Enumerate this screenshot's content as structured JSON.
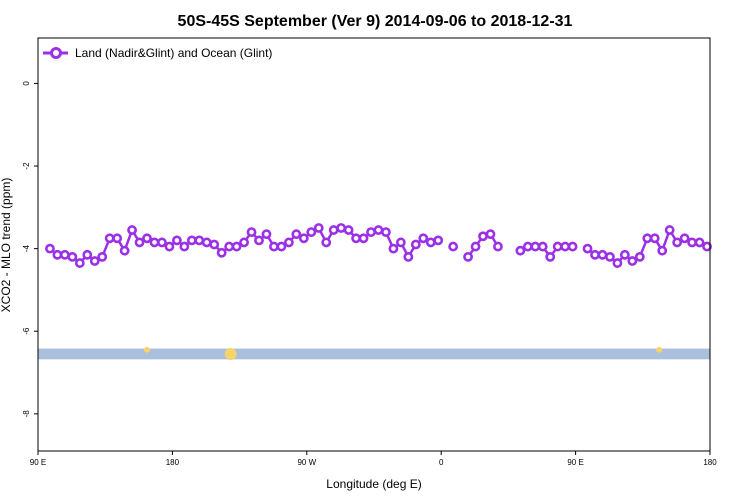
{
  "chart_data": {
    "type": "line",
    "title": "50S-45S September (Ver 9)   2014-09-06 to 2018-12-31",
    "xlabel": "Longitude (deg E)",
    "ylabel": "XCO2 - MLO trend (ppm)",
    "xlim": [
      90,
      450
    ],
    "ylim": [
      -8.9,
      1.1
    ],
    "x_tick_values": [
      90,
      180,
      270,
      360,
      450,
      540
    ],
    "x_tick_labels": [
      "90 E",
      "180",
      "90 W",
      "0",
      "90 E",
      "180"
    ],
    "y_tick_values": [
      0,
      -2,
      -4,
      -6,
      -8
    ],
    "y_tick_labels": [
      "0",
      "-2",
      "-4",
      "-6",
      "-8"
    ],
    "legend_position": "top-left",
    "colors": {
      "series": "#9b30e6",
      "land_band": "#a9bfdc",
      "land_patch": "#f7d36b"
    },
    "series": [
      {
        "name": "Land (Nadir&Glint) and Ocean (Glint)",
        "points": [
          [
            98,
            -4.0
          ],
          [
            103,
            -4.15
          ],
          [
            108,
            -4.15
          ],
          [
            113,
            -4.2
          ],
          [
            118,
            -4.35
          ],
          [
            123,
            -4.15
          ],
          [
            128,
            -4.3
          ],
          [
            133,
            -4.2
          ],
          [
            138,
            -3.75
          ],
          [
            143,
            -3.75
          ],
          [
            148,
            -4.05
          ],
          [
            153,
            -3.55
          ],
          [
            158,
            -3.85
          ],
          [
            163,
            -3.75
          ],
          [
            168,
            -3.85
          ],
          [
            173,
            -3.85
          ],
          [
            178,
            -3.95
          ],
          [
            183,
            -3.8
          ],
          [
            188,
            -3.95
          ],
          [
            193,
            -3.8
          ],
          [
            198,
            -3.8
          ],
          [
            203,
            -3.85
          ],
          [
            208,
            -3.9
          ],
          [
            213,
            -4.1
          ],
          [
            218,
            -3.95
          ],
          [
            223,
            -3.95
          ],
          [
            228,
            -3.85
          ],
          [
            233,
            -3.6
          ],
          [
            238,
            -3.8
          ],
          [
            243,
            -3.65
          ],
          [
            248,
            -3.95
          ],
          [
            253,
            -3.95
          ],
          [
            258,
            -3.85
          ],
          [
            263,
            -3.65
          ],
          [
            268,
            -3.75
          ],
          [
            273,
            -3.6
          ],
          [
            278,
            -3.5
          ],
          [
            283,
            -3.85
          ],
          [
            288,
            -3.55
          ],
          [
            293,
            -3.5
          ],
          [
            298,
            -3.55
          ],
          [
            303,
            -3.75
          ],
          [
            308,
            -3.75
          ],
          [
            313,
            -3.6
          ],
          [
            318,
            -3.55
          ],
          [
            323,
            -3.6
          ],
          [
            328,
            -4.0
          ],
          [
            333,
            -3.85
          ],
          [
            338,
            -4.2
          ],
          [
            343,
            -3.9
          ],
          [
            348,
            -3.75
          ],
          [
            353,
            -3.85
          ],
          [
            358,
            -3.8
          ],
          null,
          [
            368,
            -3.95
          ],
          null,
          [
            378,
            -4.2
          ],
          [
            383,
            -3.95
          ],
          [
            388,
            -3.7
          ],
          [
            393,
            -3.65
          ],
          [
            398,
            -3.95
          ],
          null,
          [
            413,
            -4.05
          ],
          [
            418,
            -3.95
          ],
          [
            423,
            -3.95
          ],
          [
            428,
            -3.95
          ],
          [
            433,
            -4.2
          ],
          [
            438,
            -3.95
          ],
          [
            443,
            -3.95
          ],
          [
            448,
            -3.95
          ],
          null,
          [
            458,
            -4.0
          ],
          [
            463,
            -4.15
          ],
          [
            468,
            -4.15
          ],
          [
            473,
            -4.2
          ],
          [
            478,
            -4.35
          ],
          [
            483,
            -4.15
          ],
          [
            488,
            -4.3
          ],
          [
            493,
            -4.2
          ],
          [
            498,
            -3.75
          ],
          [
            503,
            -3.75
          ],
          [
            508,
            -4.05
          ],
          [
            513,
            -3.55
          ],
          [
            518,
            -3.85
          ],
          [
            523,
            -3.75
          ],
          [
            528,
            -3.85
          ],
          [
            533,
            -3.85
          ],
          [
            538,
            -3.95
          ]
        ]
      }
    ],
    "land_band": {
      "y_range": [
        -6.68,
        -6.42
      ]
    },
    "land_patches": [
      {
        "lon": 163,
        "y": -6.45,
        "size": "small"
      },
      {
        "lon": 219,
        "y": -6.55,
        "size": "large"
      },
      {
        "lon": 506,
        "y": -6.45,
        "size": "small"
      }
    ]
  }
}
